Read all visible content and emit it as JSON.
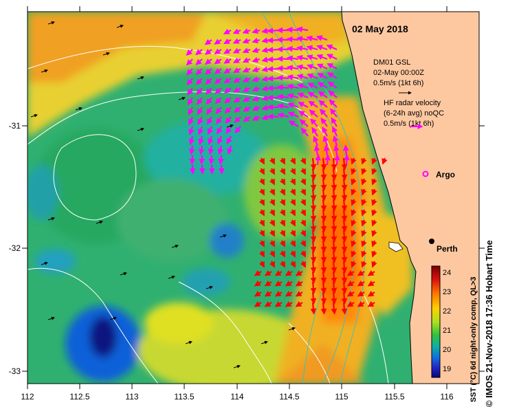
{
  "header": {
    "date_label": "02 May 2018"
  },
  "axes": {
    "x_ticks": [
      "112",
      "112.5",
      "113",
      "113.5",
      "114",
      "114.5",
      "115",
      "115.5",
      "116"
    ],
    "y_ticks": [
      "-31",
      "-32",
      "-33"
    ],
    "x_range": [
      112,
      116.2
    ],
    "y_range": [
      -33.1,
      -30.1
    ]
  },
  "legend": {
    "wind_line1": "DM01 GSL",
    "wind_line2": "02-May 00:00Z",
    "wind_line3": "0.5m/s (1kt 6h)",
    "radar_line1": "HF radar velocity",
    "radar_line2": "(6-24h avg) noQC",
    "radar_line3": "0.5m/s (1kt 6h)",
    "wind_arrow_color": "#000000",
    "radar_arrow_color": "#ff00ff"
  },
  "places": {
    "argo": "Argo",
    "perth": "Perth"
  },
  "colorbar": {
    "ticks": [
      "24",
      "23",
      "22",
      "21",
      "20",
      "19"
    ],
    "label": "SST (°C) 6d night-only comp, QL>3",
    "range": [
      18.6,
      24.4
    ]
  },
  "credit": "© IMOS 21-Nov-2018 17:36 Hobart Time",
  "colors": {
    "land": "#fdc8a0",
    "current_strong": "#ff0000",
    "current_radar": "#ff00ff",
    "contour": "#ffffff",
    "isobath": "#40c0c0"
  }
}
